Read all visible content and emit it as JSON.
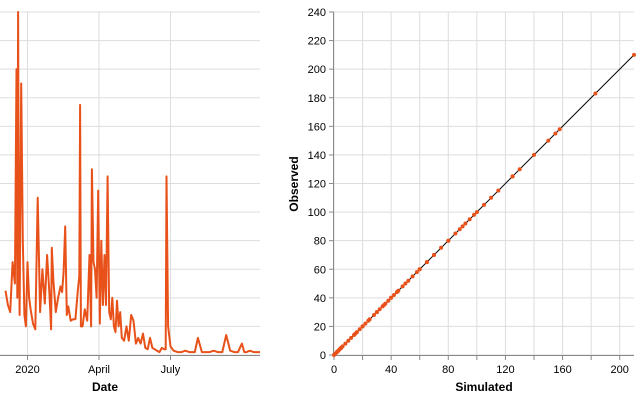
{
  "chart_data": [
    {
      "type": "line",
      "xlabel": "Date",
      "ylabel": "",
      "x_tick_labels": [
        "2020",
        "April",
        "July"
      ],
      "color": "#e8521a",
      "grid": true,
      "series": [
        {
          "x": [
            "2019-12-04",
            "2019-12-07",
            "2019-12-10",
            "2019-12-13",
            "2019-12-16",
            "2019-12-18",
            "2019-12-19",
            "2019-12-20",
            "2019-12-21",
            "2019-12-22",
            "2019-12-24",
            "2019-12-26",
            "2019-12-28",
            "2019-12-30",
            "2020-01-01",
            "2020-01-03",
            "2020-01-05",
            "2020-01-08",
            "2020-01-11",
            "2020-01-14",
            "2020-01-17",
            "2020-01-20",
            "2020-01-23",
            "2020-01-26",
            "2020-01-29",
            "2020-01-31",
            "2020-02-01",
            "2020-02-03",
            "2020-02-06",
            "2020-02-09",
            "2020-02-12",
            "2020-02-14",
            "2020-02-16",
            "2020-02-18",
            "2020-02-20",
            "2020-02-22",
            "2020-02-25",
            "2020-02-28",
            "2020-03-02",
            "2020-03-05",
            "2020-03-07",
            "2020-03-08",
            "2020-03-09",
            "2020-03-11",
            "2020-03-14",
            "2020-03-17",
            "2020-03-20",
            "2020-03-22",
            "2020-03-23",
            "2020-03-25",
            "2020-03-27",
            "2020-03-29",
            "2020-03-31",
            "2020-04-02",
            "2020-04-04",
            "2020-04-06",
            "2020-04-08",
            "2020-04-10",
            "2020-04-12",
            "2020-04-14",
            "2020-04-16",
            "2020-04-18",
            "2020-04-20",
            "2020-04-22",
            "2020-04-24",
            "2020-04-26",
            "2020-04-28",
            "2020-04-30",
            "2020-05-03",
            "2020-05-06",
            "2020-05-09",
            "2020-05-12",
            "2020-05-15",
            "2020-05-18",
            "2020-05-21",
            "2020-05-24",
            "2020-05-27",
            "2020-05-30",
            "2020-06-02",
            "2020-06-05",
            "2020-06-08",
            "2020-06-11",
            "2020-06-14",
            "2020-06-17",
            "2020-06-20",
            "2020-06-23",
            "2020-06-25",
            "2020-06-26",
            "2020-06-28",
            "2020-07-01",
            "2020-07-05",
            "2020-07-10",
            "2020-07-15",
            "2020-07-20",
            "2020-07-25",
            "2020-07-28",
            "2020-08-01",
            "2020-08-05",
            "2020-08-10",
            "2020-08-15",
            "2020-08-20",
            "2020-08-25",
            "2020-08-30",
            "2020-09-02",
            "2020-09-05",
            "2020-09-10",
            "2020-09-15",
            "2020-09-20",
            "2020-09-25",
            "2020-09-30",
            "2020-10-03",
            "2020-10-06",
            "2020-10-10",
            "2020-10-15",
            "2020-10-20",
            "2020-10-23"
          ],
          "y": [
            45,
            35,
            30,
            65,
            50,
            200,
            40,
            240,
            80,
            28,
            190,
            80,
            28,
            20,
            65,
            40,
            32,
            22,
            18,
            110,
            30,
            60,
            36,
            70,
            42,
            18,
            75,
            52,
            30,
            40,
            48,
            44,
            58,
            90,
            28,
            34,
            24,
            25,
            25,
            45,
            55,
            175,
            20,
            20,
            32,
            24,
            70,
            20,
            130,
            65,
            60,
            40,
            115,
            22,
            80,
            35,
            70,
            35,
            125,
            30,
            25,
            40,
            20,
            16,
            38,
            20,
            30,
            12,
            10,
            20,
            10,
            28,
            24,
            8,
            12,
            8,
            15,
            5,
            4,
            12,
            5,
            4,
            3,
            2,
            5,
            4,
            4,
            125,
            20,
            6,
            3,
            2,
            2,
            3,
            2,
            2,
            2,
            12,
            2,
            2,
            2,
            3,
            2,
            2,
            2,
            14,
            3,
            2,
            2,
            8,
            2,
            2,
            3,
            2,
            2,
            2
          ]
        }
      ]
    },
    {
      "type": "scatter",
      "xlabel": "Simulated",
      "ylabel": "Observed",
      "xlim": [
        0,
        210
      ],
      "ylim": [
        0,
        240
      ],
      "x_ticks": [
        "0",
        "40",
        "80",
        "120",
        "160",
        "200"
      ],
      "y_ticks": [
        "0",
        "20",
        "40",
        "60",
        "80",
        "100",
        "120",
        "140",
        "160",
        "180",
        "200",
        "220",
        "240"
      ],
      "grid": true,
      "point_color": "#e8521a",
      "reference_line_color": "#000000",
      "series": [
        {
          "x": [
            0,
            1,
            2,
            2,
            3,
            3,
            4,
            5,
            5,
            6,
            8,
            10,
            12,
            14,
            15,
            16,
            18,
            20,
            20,
            22,
            24,
            25,
            28,
            30,
            30,
            32,
            34,
            35,
            36,
            38,
            40,
            40,
            42,
            44,
            45,
            48,
            50,
            52,
            55,
            58,
            60,
            60,
            65,
            65,
            70,
            70,
            75,
            80,
            80,
            85,
            88,
            90,
            92,
            95,
            98,
            100,
            105,
            110,
            115,
            125,
            125,
            130,
            140,
            150,
            155,
            158,
            183,
            210
          ],
          "y": [
            0,
            1,
            2,
            2,
            3,
            3,
            4,
            5,
            5,
            6,
            8,
            10,
            12,
            14,
            15,
            16,
            18,
            20,
            20,
            22,
            24,
            25,
            28,
            30,
            30,
            32,
            34,
            35,
            36,
            38,
            40,
            40,
            42,
            44,
            45,
            48,
            50,
            52,
            55,
            58,
            60,
            60,
            65,
            65,
            70,
            70,
            75,
            80,
            80,
            85,
            88,
            90,
            92,
            95,
            98,
            100,
            105,
            110,
            115,
            125,
            125,
            130,
            140,
            150,
            155,
            158,
            183,
            210
          ]
        }
      ]
    }
  ]
}
